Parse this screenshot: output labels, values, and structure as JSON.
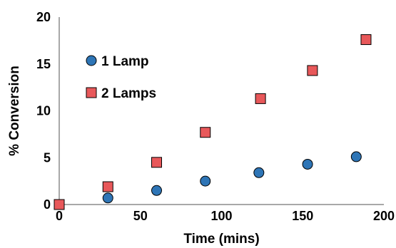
{
  "chart_data": {
    "type": "scatter",
    "title": "",
    "xlabel": "Time (mins)",
    "ylabel": "% Conversion",
    "xlim": [
      0,
      200
    ],
    "ylim": [
      0,
      20
    ],
    "x_ticks": [
      0,
      50,
      100,
      150,
      200
    ],
    "y_ticks": [
      0,
      5,
      10,
      15,
      20
    ],
    "grid": false,
    "legend_position": "top-left",
    "series": [
      {
        "name": "1 Lamp",
        "marker": "circle",
        "color": "#2e75b6",
        "x": [
          0,
          30,
          60,
          90,
          123,
          153,
          183
        ],
        "y": [
          0,
          0.7,
          1.5,
          2.5,
          3.4,
          4.3,
          5.1
        ]
      },
      {
        "name": "2 Lamps",
        "marker": "square",
        "color": "#e8585a",
        "x": [
          0,
          30,
          60,
          90,
          124,
          156,
          189
        ],
        "y": [
          0,
          1.9,
          4.5,
          7.7,
          11.3,
          14.3,
          17.6
        ]
      }
    ]
  }
}
